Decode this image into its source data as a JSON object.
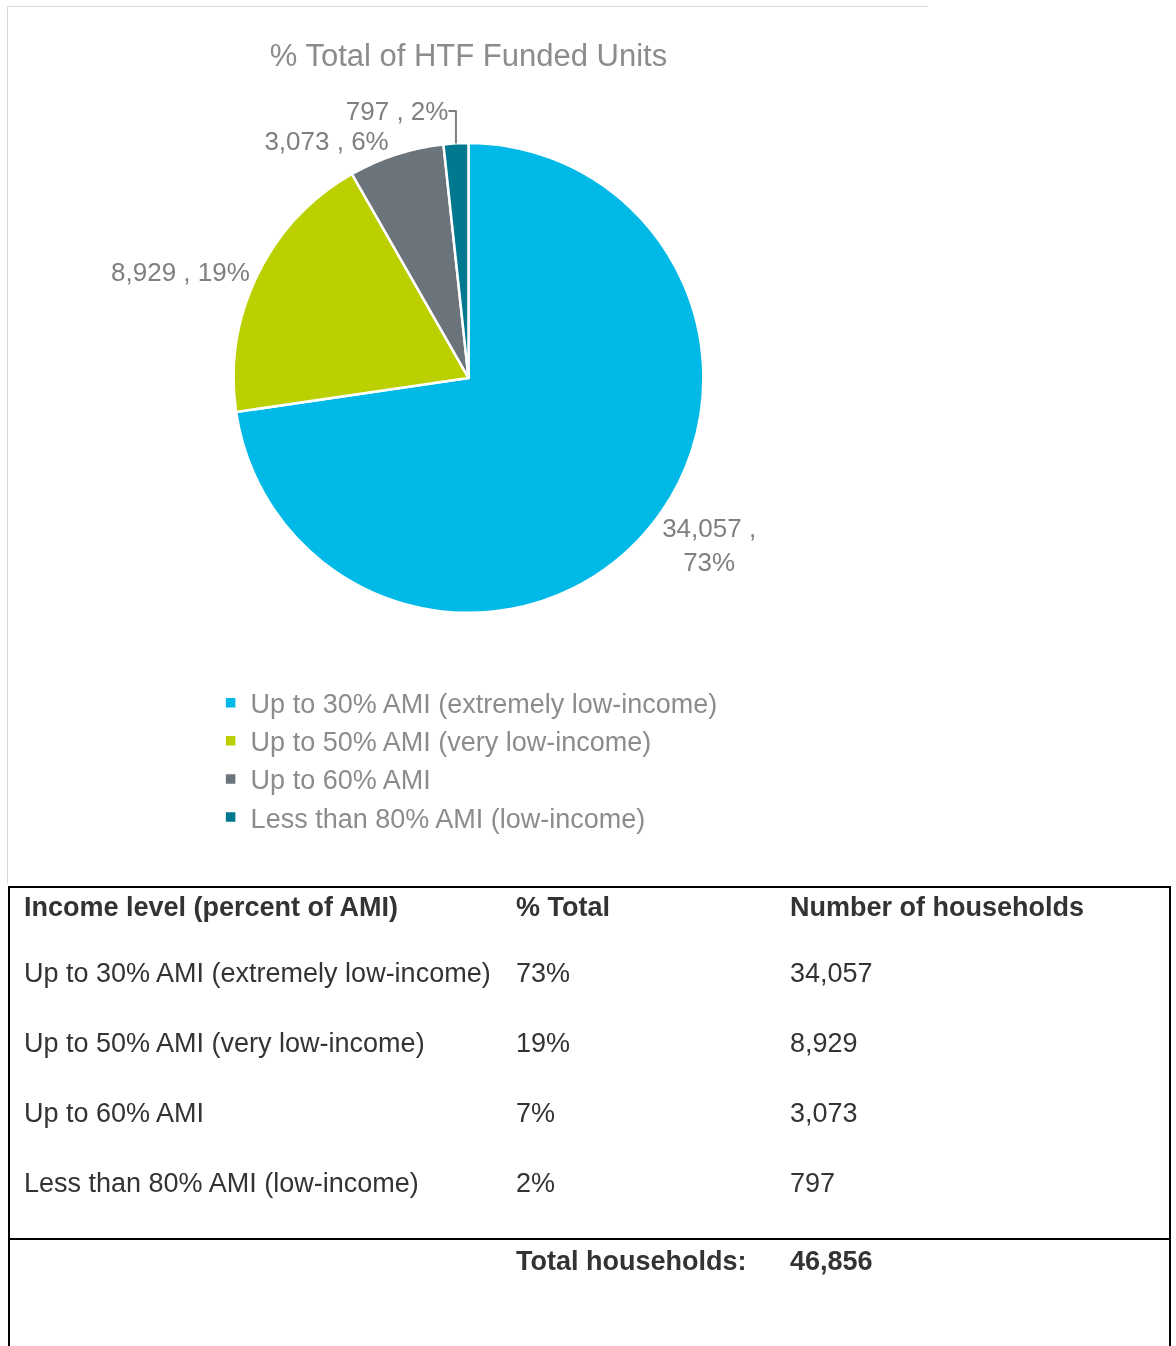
{
  "chart_data": [
    {
      "type": "pie",
      "title": "% Total of HTF Funded Units",
      "categories": [
        "Up to 30% AMI (extremely low-income)",
        "Up to 50% AMI (very low-income)",
        "Up to 60% AMI",
        "Less than 80% AMI (low-income)"
      ],
      "values": [
        34057,
        8929,
        3073,
        797
      ],
      "colors": [
        "#00b9e6",
        "#bcd000",
        "#6b737b",
        "#00788f"
      ],
      "value_labels": [
        "34,057 ,\n73%",
        "8,929 , 19%",
        "3,073 , 6%",
        "797 , 2%"
      ],
      "legend": "bottom"
    },
    {
      "type": "other",
      "categories": [
        "Up to 30% AMI (extremely low-income)",
        "Up to 50% AMI (very low-income)",
        "Up to 60% AMI",
        "Less than 80% AMI (low-income)"
      ],
      "series": [
        {
          "values": [
            73,
            19,
            7,
            2
          ],
          "value_labels": [
            "73%",
            "19%",
            "7%",
            "2%"
          ]
        },
        {
          "values": [
            34057,
            8929,
            3073,
            797
          ],
          "value_labels": [
            "34,057",
            "8,929",
            "3,073",
            "797"
          ]
        }
      ],
      "annotations": [
        "Income level (percent of AMI)",
        "% Total",
        "Number of households",
        "Total households:"
      ],
      "totals": [
        "46,856"
      ]
    }
  ]
}
